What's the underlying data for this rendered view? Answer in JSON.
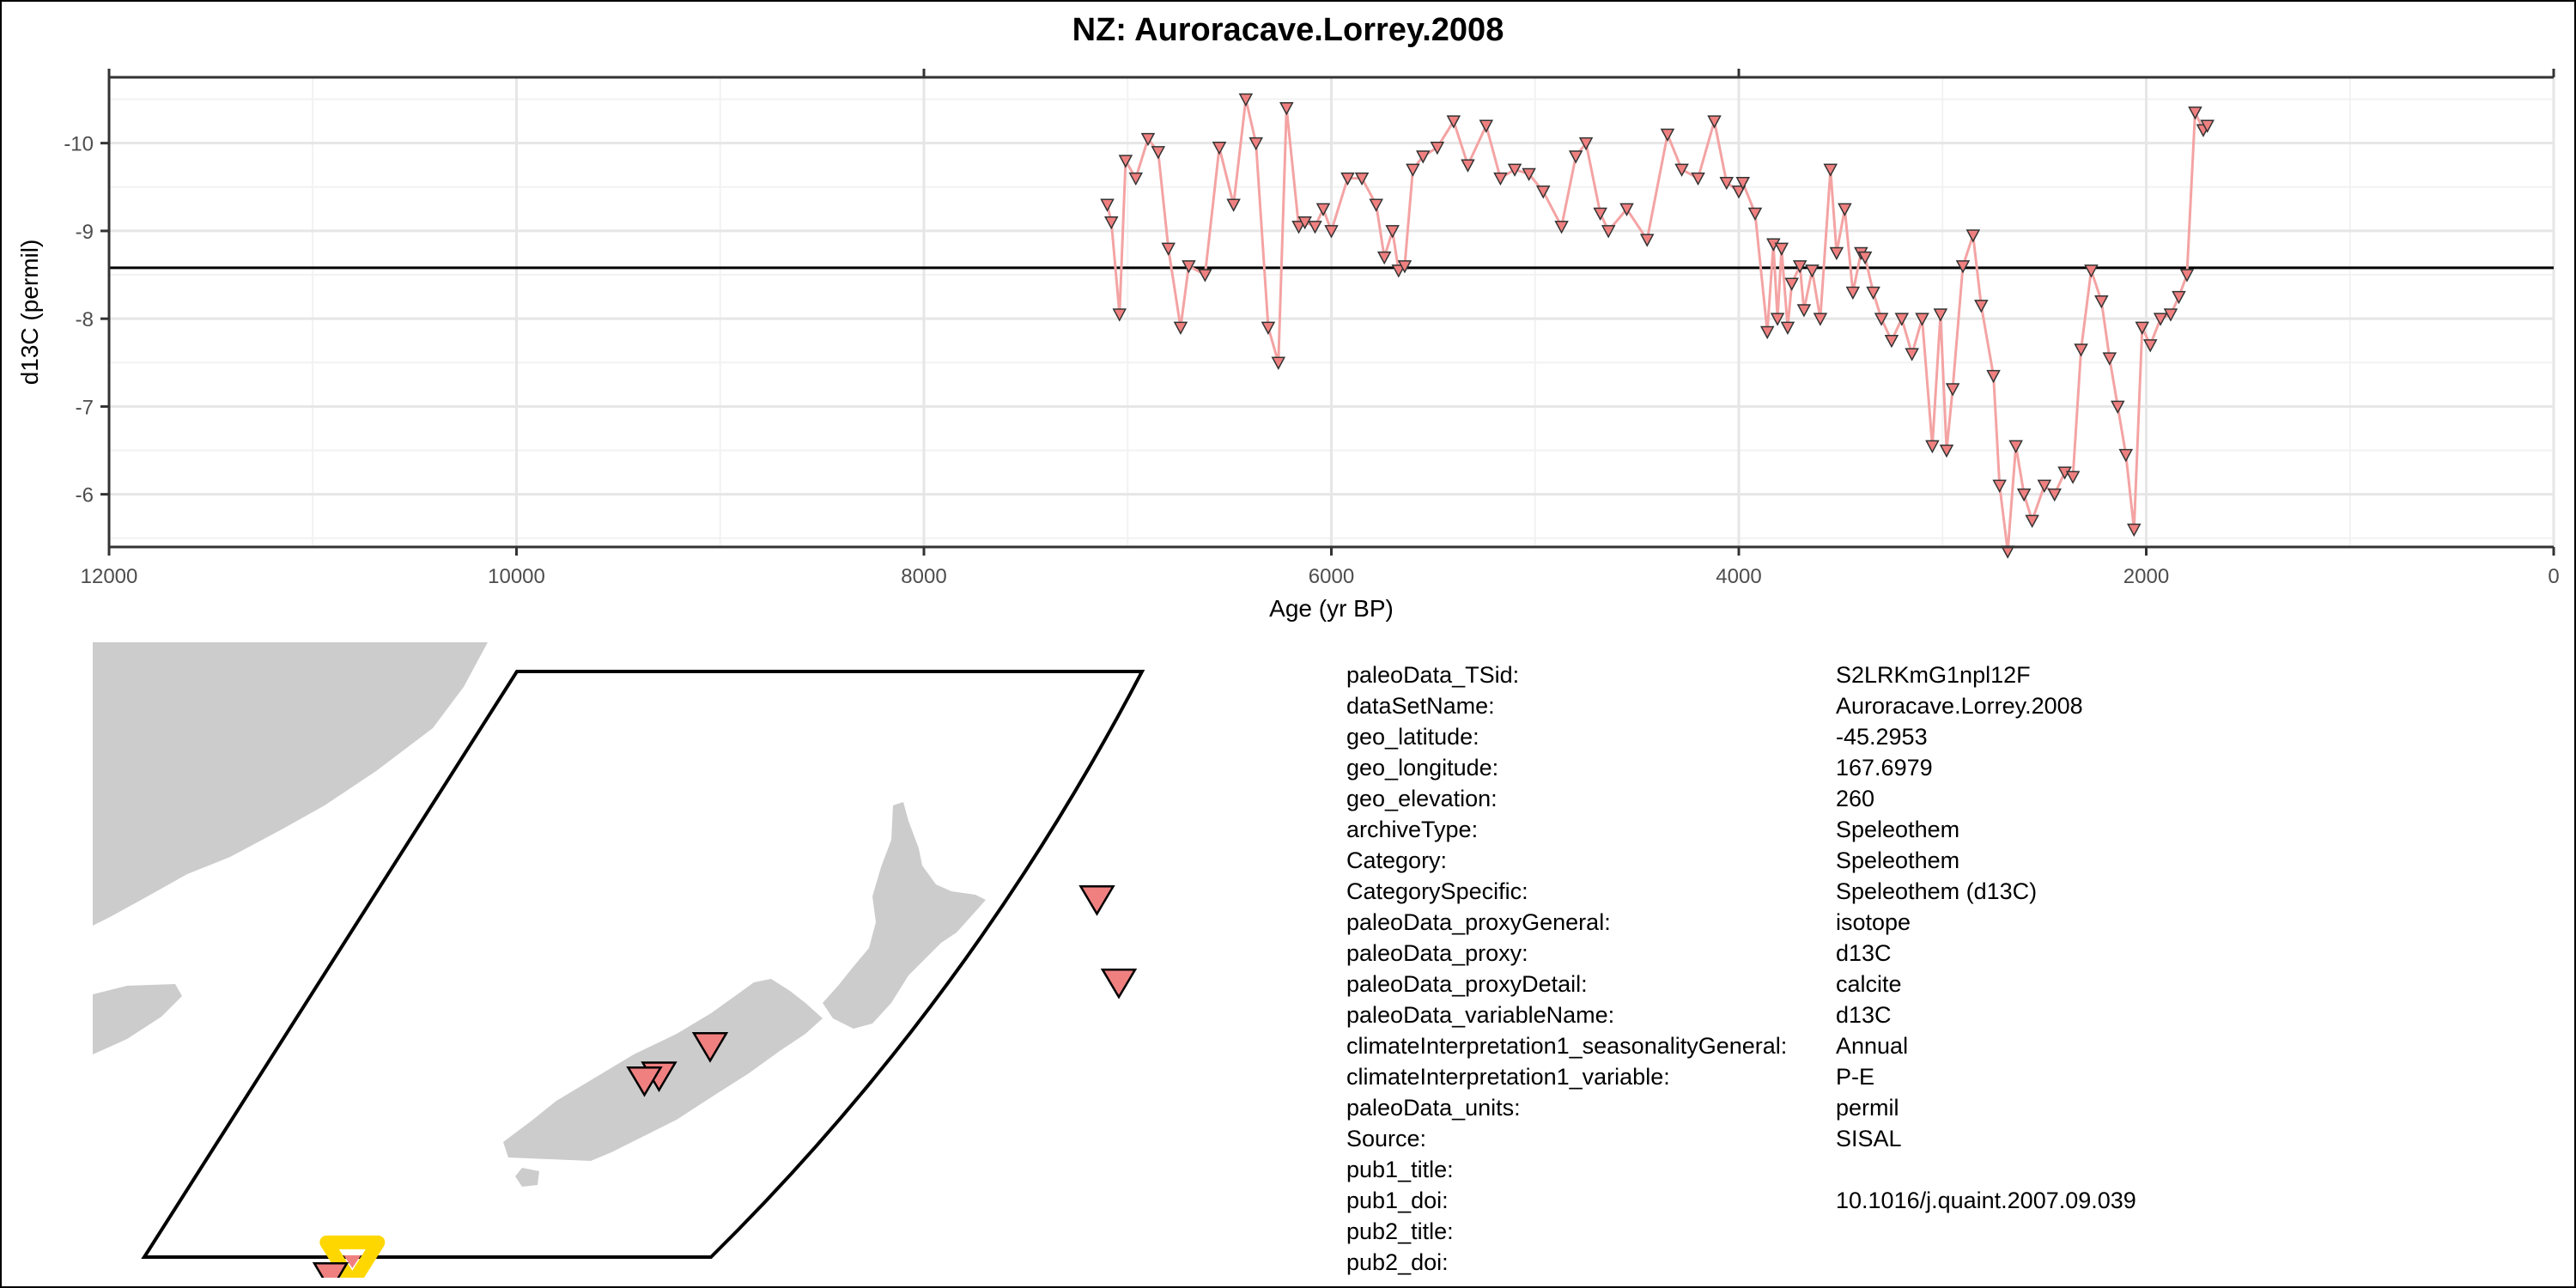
{
  "title": "NZ: Auroracave.Lorrey.2008",
  "chart_data": {
    "type": "line",
    "xlabel": "Age (yr BP)",
    "ylabel": "d13C (permil)",
    "xlim": [
      12000,
      0
    ],
    "ylim": [
      -5.4,
      -10.75
    ],
    "x_reversed": true,
    "y_reversed": true,
    "xticks": [
      12000,
      10000,
      8000,
      6000,
      4000,
      2000,
      0
    ],
    "yticks": [
      -10,
      -9,
      -8,
      -7,
      -6
    ],
    "hline": -8.58,
    "grid": true,
    "legend": "none",
    "line_color": "#f4a3a3",
    "marker": "inverted-triangle",
    "marker_fill": "#f08080",
    "series": [
      {
        "x": [
          7100,
          7080,
          7040,
          7010,
          6960,
          6900,
          6850,
          6800,
          6740,
          6700,
          6620,
          6550,
          6480,
          6420,
          6370,
          6310,
          6260,
          6220,
          6160,
          6130,
          6080,
          6040,
          6000,
          5920,
          5850,
          5780,
          5740,
          5700,
          5670,
          5640,
          5600,
          5550,
          5480,
          5400,
          5330,
          5240,
          5170,
          5100,
          5030,
          4960,
          4870,
          4800,
          4750,
          4680,
          4640,
          4550,
          4450,
          4350,
          4280,
          4200,
          4120,
          4060,
          4000,
          3980,
          3920,
          3860,
          3830,
          3810,
          3790,
          3760,
          3740,
          3700,
          3680,
          3640,
          3600,
          3550,
          3520,
          3480,
          3440,
          3400,
          3380,
          3340,
          3300,
          3250,
          3200,
          3150,
          3100,
          3050,
          3010,
          2980,
          2950,
          2900,
          2850,
          2810,
          2750,
          2720,
          2680,
          2640,
          2600,
          2560,
          2500,
          2450,
          2400,
          2360,
          2320,
          2270,
          2220,
          2180,
          2140,
          2100,
          2060,
          2020,
          1980,
          1930,
          1880,
          1840,
          1800,
          1760,
          1720,
          1700
        ],
        "y": [
          -9.3,
          -9.1,
          -8.05,
          -9.8,
          -9.6,
          -10.05,
          -9.9,
          -8.8,
          -7.9,
          -8.6,
          -8.5,
          -9.95,
          -9.3,
          -10.5,
          -10.0,
          -7.9,
          -7.5,
          -10.4,
          -9.05,
          -9.1,
          -9.05,
          -9.25,
          -9.0,
          -9.6,
          -9.6,
          -9.3,
          -8.7,
          -9.0,
          -8.55,
          -8.6,
          -9.7,
          -9.85,
          -9.95,
          -10.25,
          -9.75,
          -10.2,
          -9.6,
          -9.7,
          -9.65,
          -9.45,
          -9.05,
          -9.85,
          -10.0,
          -9.2,
          -9.0,
          -9.25,
          -8.9,
          -10.1,
          -9.7,
          -9.6,
          -10.25,
          -9.55,
          -9.45,
          -9.55,
          -9.2,
          -7.85,
          -8.85,
          -8.0,
          -8.8,
          -7.9,
          -8.4,
          -8.6,
          -8.1,
          -8.55,
          -8.0,
          -9.7,
          -8.75,
          -9.25,
          -8.3,
          -8.75,
          -8.7,
          -8.3,
          -8.0,
          -7.75,
          -8.0,
          -7.6,
          -8.0,
          -6.55,
          -8.05,
          -6.5,
          -7.2,
          -8.6,
          -8.95,
          -8.15,
          -7.35,
          -6.1,
          -5.35,
          -6.55,
          -6.0,
          -5.7,
          -6.1,
          -6.0,
          -6.25,
          -6.2,
          -7.65,
          -8.55,
          -8.2,
          -7.55,
          -7.0,
          -6.45,
          -5.6,
          -7.9,
          -7.7,
          -8.0,
          -8.05,
          -8.25,
          -8.5,
          -10.35,
          -10.15,
          -10.2
        ],
        "name": ""
      }
    ]
  },
  "metadata": [
    {
      "key": "paleoData_TSid:",
      "value": "S2LRKmG1npl12F"
    },
    {
      "key": "dataSetName:",
      "value": "Auroracave.Lorrey.2008"
    },
    {
      "key": "geo_latitude:",
      "value": "-45.2953"
    },
    {
      "key": "geo_longitude:",
      "value": "167.6979"
    },
    {
      "key": "geo_elevation:",
      "value": "260"
    },
    {
      "key": "archiveType:",
      "value": "Speleothem"
    },
    {
      "key": "Category:",
      "value": "Speleothem"
    },
    {
      "key": "CategorySpecific:",
      "value": "Speleothem (d13C)"
    },
    {
      "key": "paleoData_proxyGeneral:",
      "value": "isotope"
    },
    {
      "key": "paleoData_proxy:",
      "value": "d13C"
    },
    {
      "key": "paleoData_proxyDetail:",
      "value": "calcite"
    },
    {
      "key": "paleoData_variableName:",
      "value": "d13C"
    },
    {
      "key": "climateInterpretation1_seasonalityGeneral:",
      "value": "Annual"
    },
    {
      "key": "climateInterpretation1_variable:",
      "value": "P-E"
    },
    {
      "key": "paleoData_units:",
      "value": "permil"
    },
    {
      "key": "Source:",
      "value": "SISAL"
    },
    {
      "key": "pub1_title:",
      "value": ""
    },
    {
      "key": "pub1_doi:",
      "value": "10.1016/j.quaint.2007.09.039"
    },
    {
      "key": "pub2_title:",
      "value": ""
    },
    {
      "key": "pub2_doi:",
      "value": ""
    }
  ],
  "map": {
    "land_color": "#cccccc",
    "site_marker_color": "#f08080",
    "highlight_color": "#ffd700",
    "sites": [
      {
        "lat": -37.9,
        "lon": 177.9
      },
      {
        "lat": -39.6,
        "lon": 178.2
      },
      {
        "lat": -40.9,
        "lon": 172.6
      },
      {
        "lat": -41.5,
        "lon": 171.9
      },
      {
        "lat": -41.6,
        "lon": 171.7
      },
      {
        "lat": -45.6,
        "lon": 167.4
      }
    ],
    "highlight_site": {
      "lat": -45.2953,
      "lon": 167.6979
    }
  }
}
